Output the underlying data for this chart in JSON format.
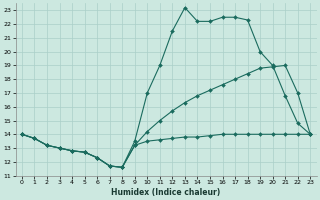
{
  "xlabel": "Humidex (Indice chaleur)",
  "bg_color": "#cce8e0",
  "grid_color": "#aacfc8",
  "line_color": "#1a6b5e",
  "xlim": [
    -0.5,
    23.5
  ],
  "ylim": [
    11,
    23.5
  ],
  "yticks": [
    11,
    12,
    13,
    14,
    15,
    16,
    17,
    18,
    19,
    20,
    21,
    22,
    23
  ],
  "xticks": [
    0,
    1,
    2,
    3,
    4,
    5,
    6,
    7,
    8,
    9,
    10,
    11,
    12,
    13,
    14,
    15,
    16,
    17,
    18,
    19,
    20,
    21,
    22,
    23
  ],
  "line1_x": [
    0,
    1,
    2,
    3,
    4,
    5,
    6,
    7,
    8,
    9,
    10,
    11,
    12,
    13,
    14,
    15,
    16,
    17,
    18,
    19,
    20,
    21,
    22,
    23
  ],
  "line1_y": [
    14.0,
    13.7,
    13.2,
    13.0,
    12.8,
    12.7,
    12.3,
    11.7,
    11.6,
    13.5,
    17.0,
    19.0,
    21.5,
    23.2,
    22.2,
    22.2,
    22.5,
    22.5,
    22.3,
    20.0,
    19.0,
    16.8,
    14.8,
    14.0
  ],
  "line2_x": [
    0,
    1,
    2,
    3,
    4,
    5,
    6,
    7,
    8,
    9,
    10,
    11,
    12,
    13,
    14,
    15,
    16,
    17,
    18,
    19,
    20,
    21,
    22,
    23
  ],
  "line2_y": [
    14.0,
    13.7,
    13.2,
    13.0,
    12.8,
    12.7,
    12.3,
    11.7,
    11.6,
    13.2,
    14.2,
    15.0,
    15.7,
    16.3,
    16.8,
    17.2,
    17.6,
    18.0,
    18.4,
    18.8,
    18.9,
    19.0,
    17.0,
    14.0
  ],
  "line3_x": [
    0,
    1,
    2,
    3,
    4,
    5,
    6,
    7,
    8,
    9,
    10,
    11,
    12,
    13,
    14,
    15,
    16,
    17,
    18,
    19,
    20,
    21,
    22,
    23
  ],
  "line3_y": [
    14.0,
    13.7,
    13.2,
    13.0,
    12.8,
    12.7,
    12.3,
    11.7,
    11.6,
    13.2,
    13.5,
    13.6,
    13.7,
    13.8,
    13.8,
    13.9,
    14.0,
    14.0,
    14.0,
    14.0,
    14.0,
    14.0,
    14.0,
    14.0
  ]
}
